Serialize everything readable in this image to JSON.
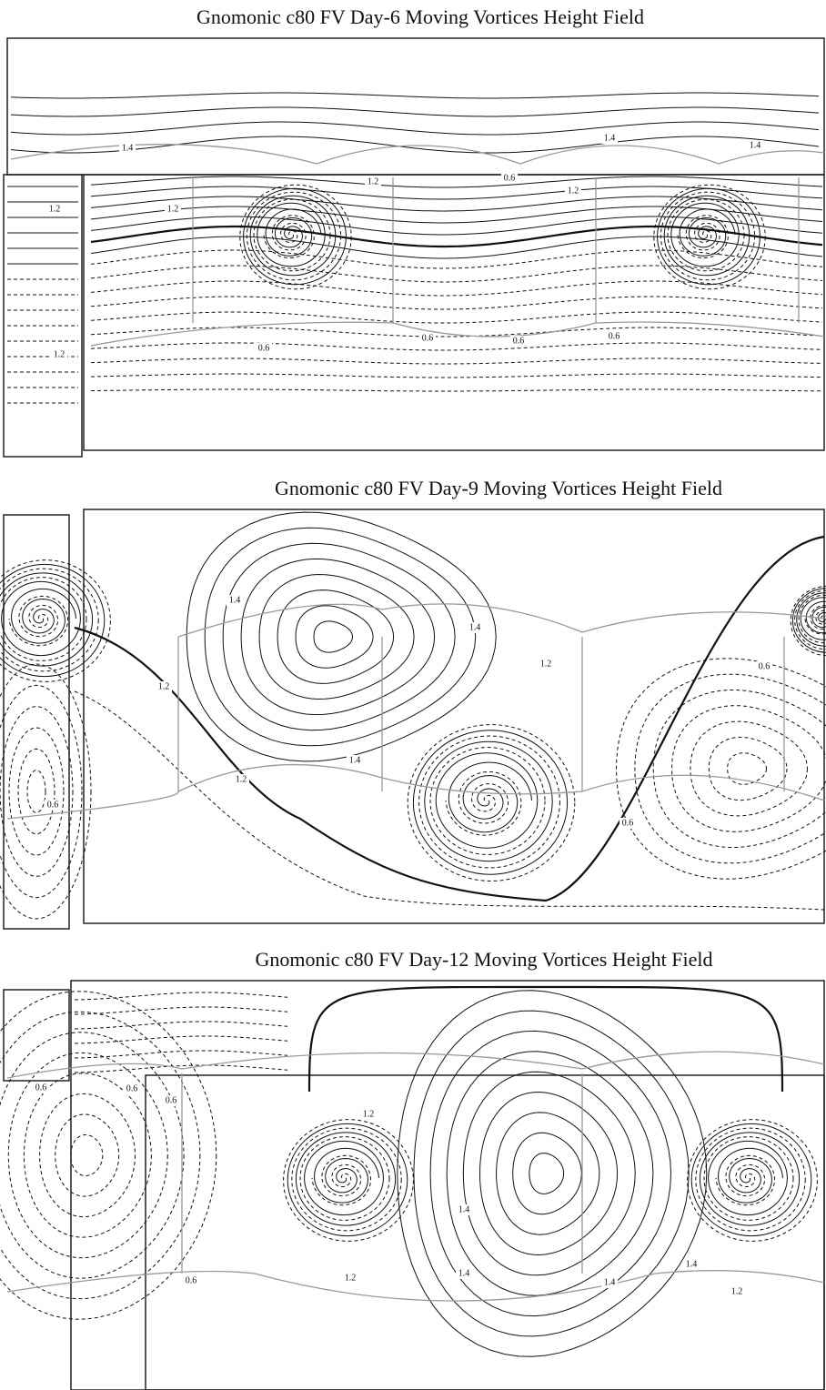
{
  "panels": [
    {
      "title": "Gnomonic c80 FV Day-6 Moving Vortices Height Field",
      "contour_labels": [
        "1.4",
        "1.4",
        "1.4",
        "1.2",
        "1.2",
        "1.2",
        "1.2",
        "1.2",
        "0.6",
        "0.6",
        "0.6",
        "0.6",
        "0.6"
      ]
    },
    {
      "title": "Gnomonic c80 FV Day-9 Moving Vortices Height Field",
      "contour_labels": [
        "1.4",
        "1.4",
        "1.4",
        "1.2",
        "1.2",
        "1.2",
        "0.6",
        "0.6",
        "0.6"
      ]
    },
    {
      "title": "Gnomonic c80 FV Day-12 Moving Vortices Height Field",
      "contour_labels": [
        "0.6",
        "0.6",
        "0.6",
        "0.6",
        "1.2",
        "1.2",
        "1.2",
        "1.4",
        "1.4",
        "1.4",
        "1.4"
      ]
    }
  ]
}
